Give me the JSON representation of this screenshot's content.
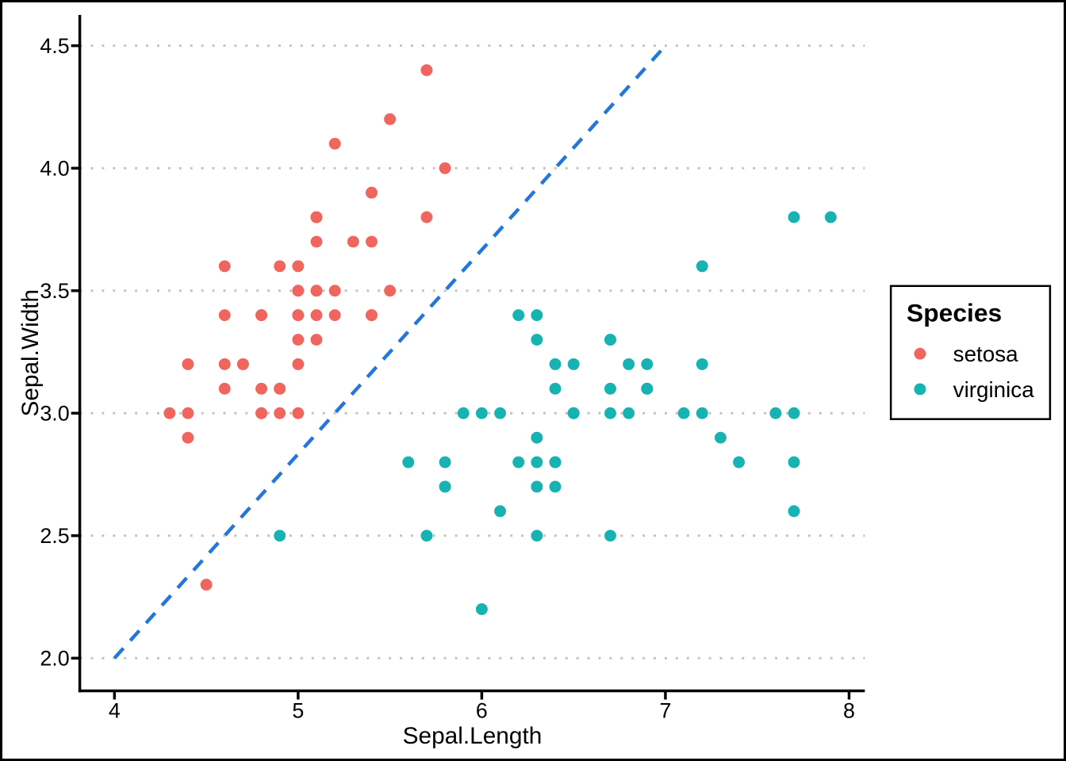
{
  "chart_data": {
    "type": "scatter",
    "title": "",
    "xlabel": "Sepal.Length",
    "ylabel": "Sepal.Width",
    "x_ticks": [
      "4",
      "5",
      "6",
      "7",
      "8"
    ],
    "y_ticks": [
      "2.0",
      "2.5",
      "3.0",
      "3.5",
      "4.0",
      "4.5"
    ],
    "xlim": [
      3.8,
      8.1
    ],
    "ylim": [
      1.86,
      4.63
    ],
    "grid": "horizontal-dotted-major-only",
    "legend": {
      "title": "Species",
      "position": "right",
      "entries": [
        {
          "label": "setosa",
          "color": "#f0665e"
        },
        {
          "label": "virginica",
          "color": "#17b2b2"
        }
      ]
    },
    "reference_line": {
      "style": "dashed",
      "color": "#2376da",
      "from": [
        4.0,
        2.0
      ],
      "to": [
        7.0,
        4.5
      ]
    },
    "series": [
      {
        "name": "setosa",
        "color": "#f0665e",
        "points": [
          [
            5.1,
            3.5
          ],
          [
            4.9,
            3.0
          ],
          [
            4.7,
            3.2
          ],
          [
            4.6,
            3.1
          ],
          [
            5.0,
            3.6
          ],
          [
            5.4,
            3.9
          ],
          [
            4.6,
            3.4
          ],
          [
            5.0,
            3.4
          ],
          [
            4.4,
            2.9
          ],
          [
            4.9,
            3.1
          ],
          [
            5.4,
            3.7
          ],
          [
            4.8,
            3.4
          ],
          [
            4.8,
            3.0
          ],
          [
            4.3,
            3.0
          ],
          [
            5.8,
            4.0
          ],
          [
            5.7,
            4.4
          ],
          [
            5.4,
            3.9
          ],
          [
            5.1,
            3.5
          ],
          [
            5.7,
            3.8
          ],
          [
            5.1,
            3.8
          ],
          [
            5.4,
            3.4
          ],
          [
            5.1,
            3.7
          ],
          [
            4.6,
            3.6
          ],
          [
            5.1,
            3.3
          ],
          [
            4.8,
            3.4
          ],
          [
            5.0,
            3.0
          ],
          [
            5.0,
            3.4
          ],
          [
            5.2,
            3.5
          ],
          [
            5.2,
            3.4
          ],
          [
            4.7,
            3.2
          ],
          [
            4.8,
            3.1
          ],
          [
            5.4,
            3.4
          ],
          [
            5.2,
            4.1
          ],
          [
            5.5,
            4.2
          ],
          [
            4.9,
            3.1
          ],
          [
            5.0,
            3.2
          ],
          [
            5.5,
            3.5
          ],
          [
            4.9,
            3.6
          ],
          [
            4.4,
            3.0
          ],
          [
            5.1,
            3.4
          ],
          [
            5.0,
            3.5
          ],
          [
            4.5,
            2.3
          ],
          [
            4.4,
            3.2
          ],
          [
            5.0,
            3.5
          ],
          [
            5.1,
            3.8
          ],
          [
            4.8,
            3.0
          ],
          [
            5.1,
            3.8
          ],
          [
            4.6,
            3.2
          ],
          [
            5.3,
            3.7
          ],
          [
            5.0,
            3.3
          ]
        ]
      },
      {
        "name": "virginica",
        "color": "#17b2b2",
        "points": [
          [
            6.3,
            3.3
          ],
          [
            5.8,
            2.7
          ],
          [
            7.1,
            3.0
          ],
          [
            6.3,
            2.9
          ],
          [
            6.5,
            3.0
          ],
          [
            7.6,
            3.0
          ],
          [
            4.9,
            2.5
          ],
          [
            7.3,
            2.9
          ],
          [
            6.7,
            2.5
          ],
          [
            7.2,
            3.6
          ],
          [
            6.5,
            3.2
          ],
          [
            6.4,
            2.7
          ],
          [
            6.8,
            3.0
          ],
          [
            5.7,
            2.5
          ],
          [
            5.8,
            2.8
          ],
          [
            6.4,
            3.2
          ],
          [
            6.5,
            3.0
          ],
          [
            7.7,
            3.8
          ],
          [
            7.7,
            2.6
          ],
          [
            6.0,
            2.2
          ],
          [
            6.9,
            3.2
          ],
          [
            5.6,
            2.8
          ],
          [
            7.7,
            2.8
          ],
          [
            6.3,
            2.7
          ],
          [
            6.7,
            3.3
          ],
          [
            7.2,
            3.2
          ],
          [
            6.2,
            2.8
          ],
          [
            6.1,
            3.0
          ],
          [
            6.4,
            2.8
          ],
          [
            7.2,
            3.0
          ],
          [
            7.4,
            2.8
          ],
          [
            7.9,
            3.8
          ],
          [
            6.4,
            2.8
          ],
          [
            6.3,
            2.8
          ],
          [
            6.1,
            2.6
          ],
          [
            7.7,
            3.0
          ],
          [
            6.3,
            3.4
          ],
          [
            6.4,
            3.1
          ],
          [
            6.0,
            3.0
          ],
          [
            6.9,
            3.1
          ],
          [
            6.7,
            3.1
          ],
          [
            6.9,
            3.1
          ],
          [
            5.8,
            2.7
          ],
          [
            6.8,
            3.2
          ],
          [
            6.7,
            3.3
          ],
          [
            6.7,
            3.0
          ],
          [
            6.3,
            2.5
          ],
          [
            6.5,
            3.0
          ],
          [
            6.2,
            3.4
          ],
          [
            5.9,
            3.0
          ]
        ]
      }
    ]
  }
}
